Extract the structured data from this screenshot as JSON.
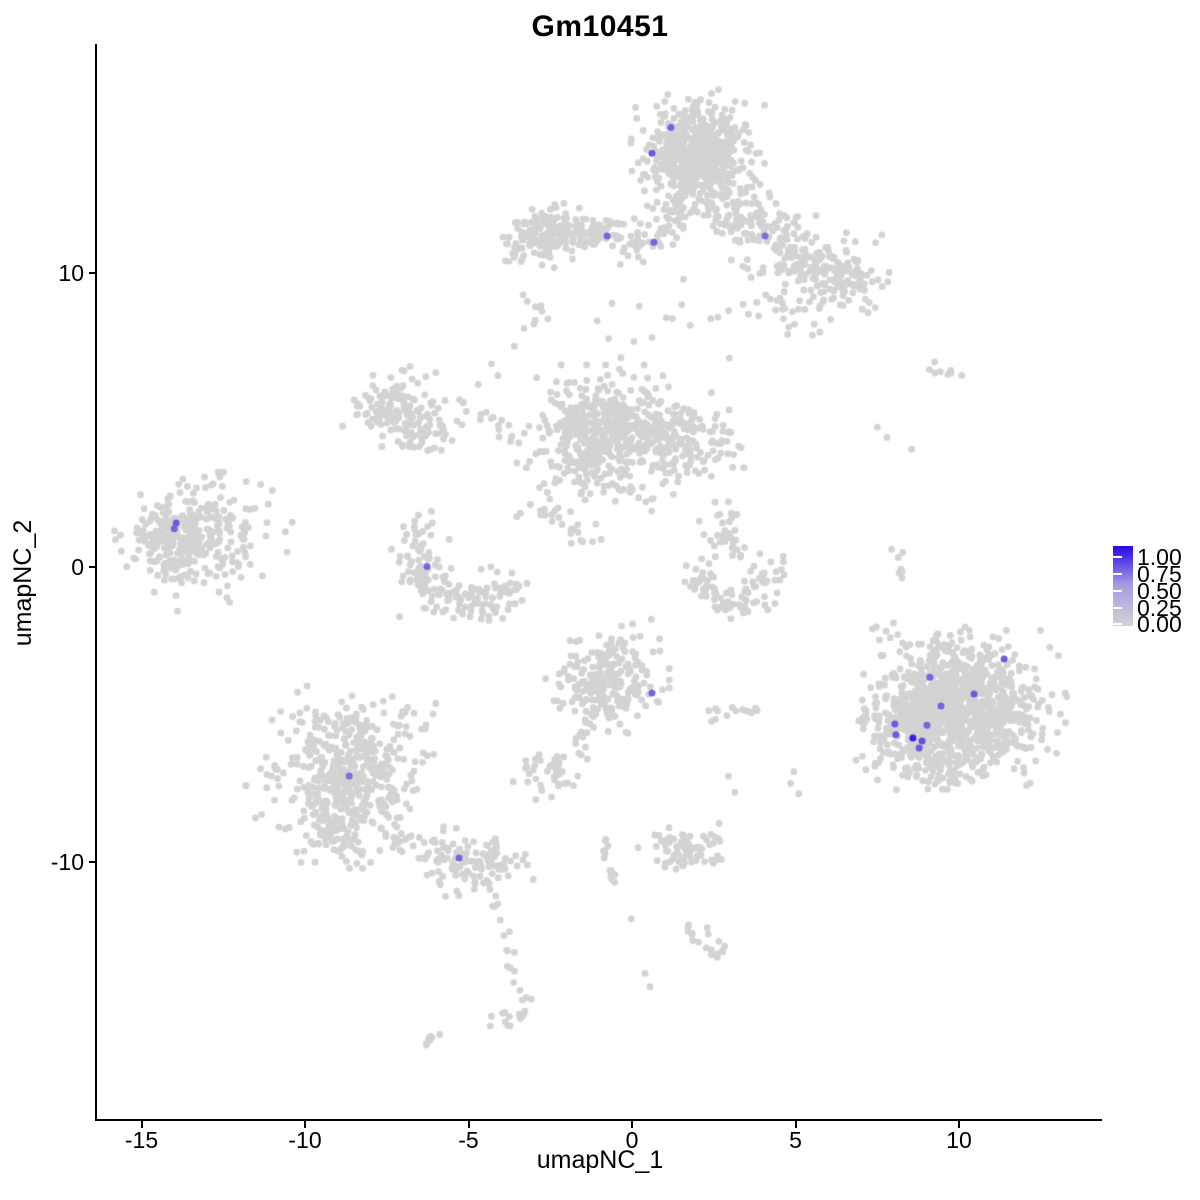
{
  "title": "Gm10451",
  "axes": {
    "x": {
      "label": "umapNC_1",
      "ticks": [
        "-15",
        "-10",
        "-5",
        "0",
        "5",
        "10"
      ]
    },
    "y": {
      "label": "umapNC_2",
      "ticks": [
        "10",
        "0",
        "-10"
      ]
    }
  },
  "legend": {
    "labels": [
      "1.00",
      "0.75",
      "0.50",
      "0.25",
      "0.00"
    ],
    "gradient_top": "#2609E8",
    "gradient_mid": "#A59BE3",
    "gradient_bottom": "#D3D3D3"
  },
  "colors": {
    "background": "#FFFFFF",
    "point_gray": "#D3D3D3",
    "expression_low": "#D3D3D3",
    "expression_high": "#2609E8",
    "axis_line": "#000000",
    "text": "#000000"
  },
  "chart_data": {
    "type": "scatter",
    "title": "Gm10451",
    "xlabel": "umapNC_1",
    "ylabel": "umapNC_2",
    "xlim": [
      -16.4,
      14.4
    ],
    "ylim": [
      -18.8,
      17.7
    ],
    "x_ticks": [
      -15,
      -10,
      -5,
      0,
      5,
      10
    ],
    "y_ticks": [
      10,
      0,
      -10
    ],
    "grid": false,
    "legend_position": "right",
    "colorbar_range": [
      0.0,
      1.0
    ],
    "point_groups": [
      {
        "name": "top-main",
        "type": "blob",
        "c": [
          1.95,
          14.05
        ],
        "s": [
          0.78,
          0.8
        ],
        "n": 500
      },
      {
        "name": "top-main-core",
        "type": "blob",
        "c": [
          2.1,
          13.85
        ],
        "s": [
          0.45,
          0.4
        ],
        "n": 120
      },
      {
        "name": "top-neck",
        "type": "path",
        "pts": [
          [
            1.5,
            12.5
          ],
          [
            1.15,
            11.4
          ]
        ],
        "w": 0.28,
        "n": 35
      },
      {
        "name": "left-arm-head",
        "type": "blob",
        "c": [
          -2.55,
          11.3
        ],
        "s": [
          0.55,
          0.42
        ],
        "n": 140
      },
      {
        "name": "left-arm-band",
        "type": "path",
        "pts": [
          [
            -1.7,
            11.6
          ],
          [
            -0.3,
            11.15
          ],
          [
            0.7,
            11.05
          ]
        ],
        "w": 0.26,
        "n": 85
      },
      {
        "name": "left-arm-tail",
        "type": "blob",
        "c": [
          -3.65,
          10.9
        ],
        "s": [
          0.3,
          0.28
        ],
        "n": 18
      },
      {
        "name": "left-small-arc",
        "type": "path",
        "pts": [
          [
            -3.2,
            9.0
          ],
          [
            -2.6,
            8.5
          ]
        ],
        "w": 0.15,
        "n": 8
      },
      {
        "name": "right-arm",
        "type": "path",
        "pts": [
          [
            2.5,
            12.6
          ],
          [
            4.2,
            11.4
          ],
          [
            5.6,
            10.3
          ],
          [
            6.9,
            9.4
          ]
        ],
        "w": 0.55,
        "n": 235
      },
      {
        "name": "right-arm-scatter",
        "type": "blob",
        "c": [
          4.9,
          9.0
        ],
        "s": [
          1.1,
          0.75
        ],
        "n": 55
      },
      {
        "name": "right-arm-tip",
        "type": "blob",
        "c": [
          6.6,
          10.0
        ],
        "s": [
          0.55,
          0.5
        ],
        "n": 45
      },
      {
        "name": "below-top-sparse",
        "type": "blob",
        "c": [
          0.3,
          8.4
        ],
        "s": [
          1.2,
          0.8
        ],
        "n": 14
      },
      {
        "name": "left-cluster",
        "type": "blob",
        "c": [
          -13.6,
          0.9
        ],
        "s": [
          0.85,
          0.8
        ],
        "n": 310
      },
      {
        "name": "left-cluster-fringe",
        "type": "blob",
        "c": [
          -12.2,
          1.2
        ],
        "s": [
          0.7,
          0.9
        ],
        "n": 30
      },
      {
        "name": "left-outliers",
        "type": "singles",
        "pts": [
          [
            -11.0,
            2.6
          ],
          [
            -10.6,
            1.2
          ],
          [
            -11.3,
            -0.3
          ],
          [
            -12.3,
            -1.2
          ],
          [
            -13.9,
            -1.5
          ],
          [
            -11.8,
            2.9
          ]
        ]
      },
      {
        "name": "midleft-a",
        "type": "blob",
        "c": [
          -7.5,
          5.4
        ],
        "s": [
          0.5,
          0.5
        ],
        "n": 85
      },
      {
        "name": "midleft-b",
        "type": "blob",
        "c": [
          -6.4,
          4.7
        ],
        "s": [
          0.55,
          0.45
        ],
        "n": 70
      },
      {
        "name": "midleft-north",
        "type": "blob",
        "c": [
          -6.9,
          6.3
        ],
        "s": [
          0.4,
          0.25
        ],
        "n": 12
      },
      {
        "name": "chain-se",
        "type": "path",
        "pts": [
          [
            -5.4,
            5.8
          ],
          [
            -4.4,
            5.0
          ],
          [
            -3.7,
            4.4
          ]
        ],
        "w": 0.18,
        "n": 18
      },
      {
        "name": "chain-up",
        "type": "singles",
        "pts": [
          [
            -4.3,
            6.9
          ],
          [
            -4.1,
            6.5
          ],
          [
            -3.6,
            7.5
          ],
          [
            -4.7,
            6.2
          ],
          [
            -3.3,
            8.1
          ],
          [
            -3.0,
            8.25
          ]
        ]
      },
      {
        "name": "center-main",
        "type": "blob",
        "c": [
          -0.9,
          4.7
        ],
        "s": [
          0.95,
          0.8
        ],
        "n": 430
      },
      {
        "name": "center-east",
        "type": "blob",
        "c": [
          1.5,
          4.3
        ],
        "s": [
          0.85,
          0.6
        ],
        "n": 160
      },
      {
        "name": "center-south-sparse",
        "type": "blob",
        "c": [
          -0.3,
          2.8
        ],
        "s": [
          0.9,
          0.55
        ],
        "n": 35
      },
      {
        "name": "center-sw-chain",
        "type": "path",
        "pts": [
          [
            -3.2,
            2.4
          ],
          [
            -2.2,
            1.5
          ],
          [
            -1.2,
            1.0
          ]
        ],
        "w": 0.3,
        "n": 28
      },
      {
        "name": "center-left-sparse",
        "type": "blob",
        "c": [
          -2.0,
          3.4
        ],
        "s": [
          0.7,
          0.6
        ],
        "n": 28
      },
      {
        "name": "crescent-mid",
        "type": "path",
        "pts": [
          [
            -6.5,
            1.3
          ],
          [
            -6.7,
            0.2
          ],
          [
            -6.2,
            -0.6
          ],
          [
            -5.3,
            -1.05
          ],
          [
            -4.3,
            -1.15
          ],
          [
            -3.5,
            -0.8
          ]
        ],
        "w": 0.38,
        "n": 175
      },
      {
        "name": "strand-above-crescent",
        "type": "path",
        "pts": [
          [
            2.6,
            1.95
          ],
          [
            3.1,
            1.0
          ],
          [
            3.3,
            0.2
          ]
        ],
        "w": 0.22,
        "n": 30
      },
      {
        "name": "strand-side-dots",
        "type": "singles",
        "pts": [
          [
            2.4,
            0.9
          ],
          [
            2.55,
            0.35
          ],
          [
            2.2,
            1.1
          ],
          [
            2.54,
            2.2
          ]
        ]
      },
      {
        "name": "crescent-right",
        "type": "path",
        "pts": [
          [
            1.8,
            -0.2
          ],
          [
            2.3,
            -0.9
          ],
          [
            3.0,
            -1.25
          ],
          [
            3.8,
            -1.1
          ],
          [
            4.35,
            -0.3
          ],
          [
            4.45,
            0.15
          ]
        ],
        "w": 0.28,
        "n": 90
      },
      {
        "name": "centerbottom-cluster",
        "type": "blob",
        "c": [
          -0.75,
          -3.8
        ],
        "s": [
          0.7,
          0.75
        ],
        "n": 235
      },
      {
        "name": "centerbottom-tail",
        "type": "path",
        "pts": [
          [
            -1.3,
            -5.1
          ],
          [
            -1.75,
            -6.4
          ]
        ],
        "w": 0.1,
        "n": 9
      },
      {
        "name": "small-left-cluster",
        "type": "blob",
        "c": [
          -2.5,
          -7.0
        ],
        "s": [
          0.42,
          0.38
        ],
        "n": 40
      },
      {
        "name": "small-right-cluster",
        "type": "blob",
        "c": [
          2.95,
          -4.95
        ],
        "s": [
          0.4,
          0.18
        ],
        "n": 14
      },
      {
        "name": "right-mid-dots",
        "type": "singles",
        "pts": [
          [
            2.95,
            -7.1
          ],
          [
            3.15,
            -7.65
          ],
          [
            4.95,
            -6.95
          ],
          [
            5.1,
            -7.7
          ],
          [
            4.85,
            -7.35
          ]
        ]
      },
      {
        "name": "bottomleft-top",
        "type": "blob",
        "c": [
          -8.7,
          -6.4
        ],
        "s": [
          1.15,
          0.75
        ],
        "n": 235
      },
      {
        "name": "bottomleft-mid",
        "type": "blob",
        "c": [
          -8.95,
          -7.9
        ],
        "s": [
          0.95,
          0.65
        ],
        "n": 175
      },
      {
        "name": "bottomleft-bottom",
        "type": "blob",
        "c": [
          -9.0,
          -9.3
        ],
        "s": [
          0.55,
          0.5
        ],
        "n": 70
      },
      {
        "name": "bottomleft-top-fringe",
        "type": "blob",
        "c": [
          -8.6,
          -5.0
        ],
        "s": [
          1.0,
          0.4
        ],
        "n": 40
      },
      {
        "name": "bottomleft-band",
        "type": "path",
        "pts": [
          [
            -7.5,
            -8.9
          ],
          [
            -6.5,
            -9.5
          ],
          [
            -5.8,
            -9.8
          ]
        ],
        "w": 0.3,
        "n": 35
      },
      {
        "name": "bottomleft-small",
        "type": "blob",
        "c": [
          -4.75,
          -10.0
        ],
        "s": [
          0.75,
          0.5
        ],
        "n": 100
      },
      {
        "name": "bottomleft-trail",
        "type": "path",
        "pts": [
          [
            -4.2,
            -11.1
          ],
          [
            -3.9,
            -12.3
          ],
          [
            -3.75,
            -13.4
          ],
          [
            -3.5,
            -14.5
          ]
        ],
        "w": 0.1,
        "n": 15
      },
      {
        "name": "bottomleft-hook",
        "type": "blob",
        "c": [
          -3.6,
          -15.1
        ],
        "s": [
          0.33,
          0.28
        ],
        "n": 18
      },
      {
        "name": "bottom-dash",
        "type": "path",
        "pts": [
          [
            -6.35,
            -16.25
          ],
          [
            -5.95,
            -15.85
          ]
        ],
        "w": 0.07,
        "n": 7
      },
      {
        "name": "vertical-trail",
        "type": "path",
        "pts": [
          [
            -0.9,
            -9.2
          ],
          [
            -0.55,
            -10.6
          ],
          [
            -0.2,
            -12.0
          ]
        ],
        "w": 0.09,
        "n": 15
      },
      {
        "name": "midbottom-cluster",
        "type": "blob",
        "c": [
          1.6,
          -9.6
        ],
        "s": [
          0.65,
          0.33
        ],
        "n": 75
      },
      {
        "name": "midbottom-left-dots",
        "type": "singles",
        "pts": [
          [
            0.9,
            -9.3
          ],
          [
            1.05,
            -9.65
          ],
          [
            0.7,
            -9.1
          ]
        ]
      },
      {
        "name": "bottom-hook",
        "type": "path",
        "pts": [
          [
            1.8,
            -12.1
          ],
          [
            2.1,
            -12.8
          ],
          [
            2.6,
            -13.15
          ],
          [
            2.8,
            -12.75
          ]
        ],
        "w": 0.16,
        "n": 20
      },
      {
        "name": "bottom-dots",
        "type": "singles",
        "pts": [
          [
            0.4,
            -13.8
          ],
          [
            0.55,
            -14.25
          ]
        ]
      },
      {
        "name": "right-main",
        "type": "blob",
        "c": [
          10.15,
          -4.85
        ],
        "s": [
          1.15,
          1.0
        ],
        "n": 900
      },
      {
        "name": "right-west-lobe",
        "type": "blob",
        "c": [
          8.4,
          -5.4
        ],
        "s": [
          0.6,
          0.8
        ],
        "n": 180
      },
      {
        "name": "right-top-fringe",
        "type": "blob",
        "c": [
          9.7,
          -2.9
        ],
        "s": [
          1.0,
          0.38
        ],
        "n": 55
      },
      {
        "name": "right-bottom-fringe",
        "type": "blob",
        "c": [
          9.6,
          -7.0
        ],
        "s": [
          0.8,
          0.35
        ],
        "n": 45
      },
      {
        "name": "right-outliers",
        "type": "singles",
        "pts": [
          [
            7.3,
            -4.1
          ],
          [
            7.15,
            -5.0
          ],
          [
            7.6,
            -6.5
          ],
          [
            7.9,
            -2.4
          ],
          [
            13.3,
            -4.4
          ],
          [
            7.35,
            -2.1
          ]
        ]
      },
      {
        "name": "right-trail",
        "type": "path",
        "pts": [
          [
            8.1,
            0.9
          ],
          [
            8.25,
            -0.6
          ]
        ],
        "w": 0.08,
        "n": 7
      },
      {
        "name": "topright-small",
        "type": "blob",
        "c": [
          9.6,
          6.6
        ],
        "s": [
          0.3,
          0.14
        ],
        "n": 8
      },
      {
        "name": "right-singles",
        "type": "singles",
        "pts": [
          [
            7.5,
            4.75
          ],
          [
            7.8,
            4.4
          ],
          [
            8.0,
            -1.9
          ],
          [
            8.55,
            4.0
          ]
        ]
      }
    ],
    "highlighted_columns": [
      "umapNC_1",
      "umapNC_2",
      "expression"
    ],
    "highlighted_cells": [
      [
        1.19,
        14.92,
        0.55
      ],
      [
        0.61,
        14.05,
        0.6
      ],
      [
        -0.76,
        11.24,
        0.55
      ],
      [
        0.67,
        11.03,
        0.55
      ],
      [
        4.07,
        11.24,
        0.5
      ],
      [
        -13.94,
        1.49,
        0.6
      ],
      [
        -14.0,
        1.3,
        0.55
      ],
      [
        -6.27,
        0.02,
        0.55
      ],
      [
        0.61,
        -4.28,
        0.55
      ],
      [
        -8.65,
        -7.1,
        0.5
      ],
      [
        -5.29,
        -9.88,
        0.55
      ],
      [
        11.38,
        -3.12,
        0.6
      ],
      [
        9.11,
        -3.74,
        0.55
      ],
      [
        10.46,
        -4.31,
        0.6
      ],
      [
        9.45,
        -4.72,
        0.55
      ],
      [
        8.04,
        -5.33,
        0.6
      ],
      [
        9.02,
        -5.37,
        0.55
      ],
      [
        8.07,
        -5.7,
        0.6
      ],
      [
        8.87,
        -5.91,
        0.65
      ],
      [
        8.78,
        -6.15,
        0.6
      ],
      [
        8.59,
        -5.81,
        0.9
      ]
    ]
  }
}
